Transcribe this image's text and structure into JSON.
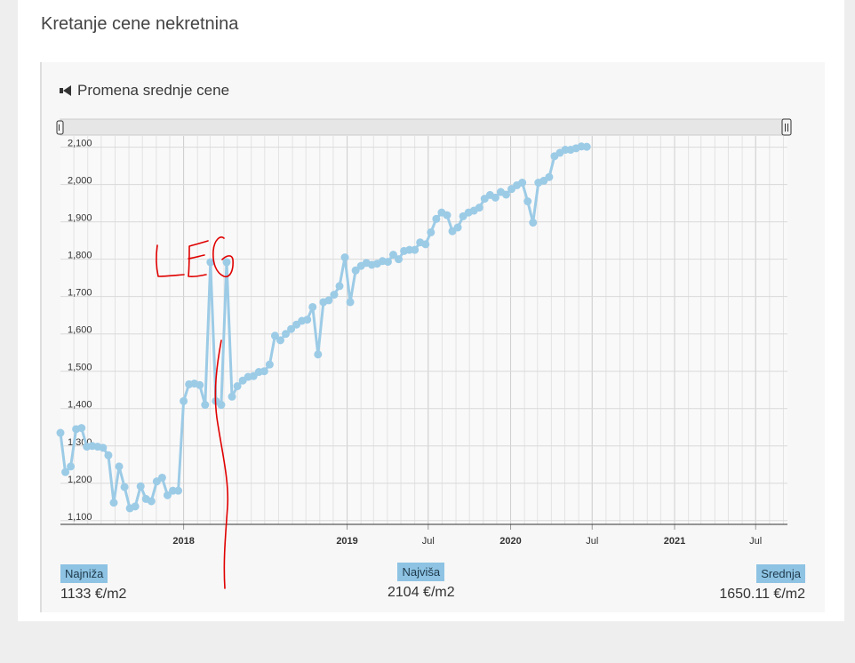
{
  "page": {
    "title": "Kretanje cene nekretnina"
  },
  "panel": {
    "title": "Promena srednje cene",
    "icon": "megaphone-icon"
  },
  "stats": {
    "min": {
      "label": "Najniža",
      "value": "1133 €/m2"
    },
    "max": {
      "label": "Najviša",
      "value": "2104 €/m2"
    },
    "avg": {
      "label": "Srednja",
      "value": "1650.11 €/m2"
    }
  },
  "annotation": {
    "text": "LEG",
    "color": "#e00000"
  },
  "chart_data": {
    "type": "line",
    "color": "#9ccbe6",
    "ylim": [
      1090,
      2130
    ],
    "y_ticks": [
      1100,
      1200,
      1300,
      1400,
      1500,
      1600,
      1700,
      1800,
      1900,
      2000,
      2100
    ],
    "y_tick_labels": [
      "1,100",
      "1,200",
      "1,300",
      "1,400",
      "1,500",
      "1,600",
      "1,700",
      "1,800",
      "1,900",
      "2,000",
      "2,100"
    ],
    "x_tick_labels": [
      {
        "label": "2018",
        "date": "2018-01-01",
        "bold": true
      },
      {
        "label": "2019",
        "date": "2019-01-01",
        "bold": true
      },
      {
        "label": "Jul",
        "date": "2019-07-01",
        "bold": false
      },
      {
        "label": "2020",
        "date": "2020-01-01",
        "bold": true
      },
      {
        "label": "Jul",
        "date": "2020-07-01",
        "bold": false
      },
      {
        "label": "2021",
        "date": "2021-01-01",
        "bold": true
      },
      {
        "label": "Jul",
        "date": "2021-07-01",
        "bold": false
      }
    ],
    "xlim": [
      "2017-04-01",
      "2021-09-10"
    ],
    "series": [
      {
        "values": [
          [
            "2017-04-01",
            1335
          ],
          [
            "2017-04-12",
            1230
          ],
          [
            "2017-04-24",
            1245
          ],
          [
            "2017-05-06",
            1345
          ],
          [
            "2017-05-18",
            1348
          ],
          [
            "2017-05-30",
            1298
          ],
          [
            "2017-06-11",
            1300
          ],
          [
            "2017-06-23",
            1298
          ],
          [
            "2017-07-05",
            1295
          ],
          [
            "2017-07-17",
            1275
          ],
          [
            "2017-07-29",
            1148
          ],
          [
            "2017-08-10",
            1245
          ],
          [
            "2017-08-22",
            1190
          ],
          [
            "2017-09-03",
            1133
          ],
          [
            "2017-09-15",
            1138
          ],
          [
            "2017-09-27",
            1192
          ],
          [
            "2017-10-09",
            1158
          ],
          [
            "2017-10-21",
            1152
          ],
          [
            "2017-11-02",
            1205
          ],
          [
            "2017-11-14",
            1215
          ],
          [
            "2017-11-26",
            1168
          ],
          [
            "2017-12-08",
            1180
          ],
          [
            "2017-12-20",
            1180
          ],
          [
            "2018-01-01",
            1420
          ],
          [
            "2018-01-13",
            1465
          ],
          [
            "2018-01-25",
            1467
          ],
          [
            "2018-02-06",
            1463
          ],
          [
            "2018-02-18",
            1410
          ],
          [
            "2018-03-02",
            1792
          ],
          [
            "2018-03-14",
            1420
          ],
          [
            "2018-03-26",
            1410
          ],
          [
            "2018-04-07",
            1792
          ],
          [
            "2018-04-19",
            1432
          ],
          [
            "2018-05-01",
            1460
          ],
          [
            "2018-05-13",
            1475
          ],
          [
            "2018-05-25",
            1485
          ],
          [
            "2018-06-06",
            1487
          ],
          [
            "2018-06-18",
            1498
          ],
          [
            "2018-06-30",
            1500
          ],
          [
            "2018-07-12",
            1518
          ],
          [
            "2018-07-24",
            1595
          ],
          [
            "2018-08-05",
            1583
          ],
          [
            "2018-08-17",
            1600
          ],
          [
            "2018-08-29",
            1613
          ],
          [
            "2018-09-10",
            1625
          ],
          [
            "2018-09-22",
            1635
          ],
          [
            "2018-10-04",
            1638
          ],
          [
            "2018-10-16",
            1672
          ],
          [
            "2018-10-28",
            1545
          ],
          [
            "2018-11-09",
            1685
          ],
          [
            "2018-11-21",
            1690
          ],
          [
            "2018-12-03",
            1705
          ],
          [
            "2018-12-15",
            1728
          ],
          [
            "2018-12-27",
            1805
          ],
          [
            "2019-01-08",
            1685
          ],
          [
            "2019-01-20",
            1770
          ],
          [
            "2019-02-01",
            1782
          ],
          [
            "2019-02-13",
            1790
          ],
          [
            "2019-02-25",
            1785
          ],
          [
            "2019-03-09",
            1788
          ],
          [
            "2019-03-21",
            1795
          ],
          [
            "2019-04-02",
            1793
          ],
          [
            "2019-04-14",
            1812
          ],
          [
            "2019-04-26",
            1800
          ],
          [
            "2019-05-08",
            1822
          ],
          [
            "2019-05-20",
            1825
          ],
          [
            "2019-06-01",
            1825
          ],
          [
            "2019-06-13",
            1845
          ],
          [
            "2019-06-25",
            1840
          ],
          [
            "2019-07-07",
            1872
          ],
          [
            "2019-07-19",
            1908
          ],
          [
            "2019-07-31",
            1925
          ],
          [
            "2019-08-12",
            1918
          ],
          [
            "2019-08-24",
            1875
          ],
          [
            "2019-09-05",
            1885
          ],
          [
            "2019-09-17",
            1915
          ],
          [
            "2019-09-29",
            1925
          ],
          [
            "2019-10-11",
            1930
          ],
          [
            "2019-10-23",
            1938
          ],
          [
            "2019-11-04",
            1962
          ],
          [
            "2019-11-16",
            1972
          ],
          [
            "2019-11-28",
            1965
          ],
          [
            "2019-12-10",
            1980
          ],
          [
            "2019-12-22",
            1973
          ],
          [
            "2020-01-03",
            1988
          ],
          [
            "2020-01-15",
            1998
          ],
          [
            "2020-01-27",
            2005
          ],
          [
            "2020-02-08",
            1955
          ],
          [
            "2020-02-20",
            1898
          ],
          [
            "2020-03-03",
            2005
          ],
          [
            "2020-03-15",
            2010
          ],
          [
            "2020-03-27",
            2020
          ],
          [
            "2020-04-08",
            2076
          ],
          [
            "2020-04-20",
            2085
          ],
          [
            "2020-05-02",
            2093
          ],
          [
            "2020-05-14",
            2093
          ],
          [
            "2020-05-26",
            2097
          ],
          [
            "2020-06-07",
            2102
          ],
          [
            "2020-06-19",
            2101
          ]
        ]
      }
    ]
  }
}
